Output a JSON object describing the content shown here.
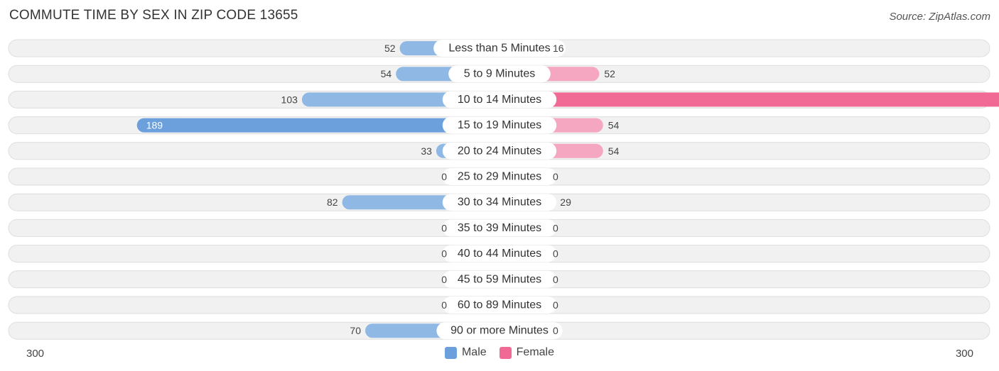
{
  "title": "COMMUTE TIME BY SEX IN ZIP CODE 13655",
  "source": "Source: ZipAtlas.com",
  "colors": {
    "male": "#8fb8e4",
    "male_strong": "#6ba0dc",
    "female": "#f5a6c0",
    "female_strong": "#f06a95",
    "row_bg": "#f1f1f1",
    "row_border": "#dedede"
  },
  "chart_data": {
    "type": "bar",
    "orientation": "diverging-horizontal",
    "categories": [
      "Less than 5 Minutes",
      "5 to 9 Minutes",
      "10 to 14 Minutes",
      "15 to 19 Minutes",
      "20 to 24 Minutes",
      "25 to 29 Minutes",
      "30 to 34 Minutes",
      "35 to 39 Minutes",
      "40 to 44 Minutes",
      "45 to 59 Minutes",
      "60 to 89 Minutes",
      "90 or more Minutes"
    ],
    "series": [
      {
        "name": "Male",
        "values": [
          52,
          54,
          103,
          189,
          33,
          0,
          82,
          0,
          0,
          0,
          0,
          70
        ]
      },
      {
        "name": "Female",
        "values": [
          16,
          52,
          279,
          54,
          54,
          0,
          29,
          0,
          0,
          0,
          0,
          0
        ]
      }
    ],
    "xlim": [
      -300,
      300
    ],
    "axis_left_label": "300",
    "axis_right_label": "300",
    "legend": [
      "Male",
      "Female"
    ],
    "legend_position": "bottom-center"
  }
}
